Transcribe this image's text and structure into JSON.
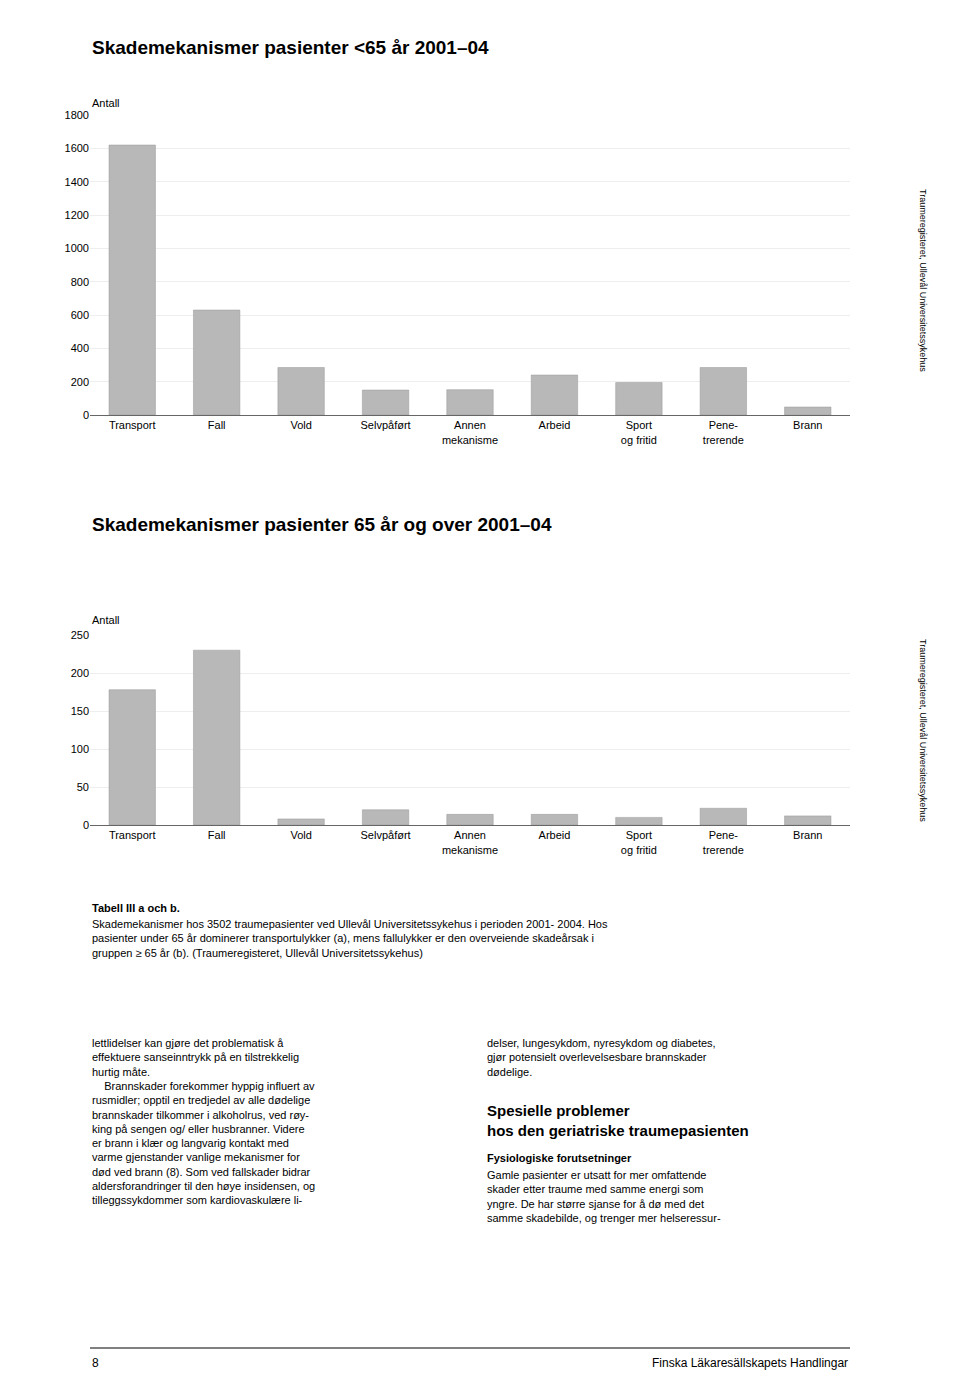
{
  "chart_data": [
    {
      "type": "bar",
      "title": "Skademekanismer pasienter <65 år 2001–04",
      "ylabel": "Antall",
      "categories": [
        "Transport",
        "Fall",
        "Vold",
        "Selvpåført",
        "Annen\nmekanisme",
        "Arbeid",
        "Sport\nog fritid",
        "Pene-\ntrerende",
        "Brann"
      ],
      "values": [
        1620,
        630,
        285,
        150,
        152,
        240,
        195,
        285,
        48
      ],
      "color": "#b8b8b8",
      "ylim": [
        0,
        1800
      ],
      "yticks": [
        0,
        200,
        400,
        600,
        800,
        1000,
        1200,
        1400,
        1600,
        1800
      ],
      "grid": true,
      "annotations": [
        "Traumeregisteret, Ullevål Universitetssykehus"
      ]
    },
    {
      "type": "bar",
      "title": "Skademekanismer pasienter 65 år og over 2001–04",
      "ylabel": "Antall",
      "categories": [
        "Transport",
        "Fall",
        "Vold",
        "Selvpåført",
        "Annen\nmekanisme",
        "Arbeid",
        "Sport\nog fritid",
        "Pene-\ntrerende",
        "Brann"
      ],
      "values": [
        178,
        230,
        8,
        20,
        14,
        14,
        10,
        22,
        12
      ],
      "color": "#b8b8b8",
      "ylim": [
        0,
        250
      ],
      "yticks": [
        0,
        50,
        100,
        150,
        200,
        250
      ],
      "grid": true,
      "annotations": [
        "Traumeregisteret, Ullevål Universitetssykehus"
      ]
    }
  ],
  "annotations": [
    "Tabell III a och b.",
    "Skademekanismer hos 3502 traumepasienter ved Ullevål Universitetssykehus i perioden 2001- 2004. Hos\npasienter under 65 år dominerer transportulykker (a), mens fallulykker er den overveiende skadeårsak i\ngruppen ≥ 65 år (b). (Traumeregisteret, Ullevål Universitetssykehus)",
    "lettlidelser kan gjøre det problematisk å\neffektuere sanseinntrykk på en tilstrekkelig\nhurtig måte.\n    Brannskader forekommer hyppig influert av\nrusmidler; opptil en tredjedel av alle dødelige\nbrannskader tilkommer i alkoholrus, ved røy-\nking på sengen og/ eller husbranner. Videre\ner brann i klær og langvarig kontakt med\nvarme gjenstander vanlige mekanismer for\ndød ved brann (8). Som ved fallskader bidrar\naldersforandringer til den høye insidensen, og\ntilleggssykdommer som kardiovaskulære li-",
    "delser, lungesykdom, nyresykdom og diabetes,\ngjør potensielt overlevelsesbare brannskader\ndødelige.",
    "Spesielle problemer\nhos den geriatriske traumepasienten",
    "Fysiologiske forutsetninger",
    "Gamle pasienter er utsatt for mer omfattende\nskader etter traume med samme energi som\nyngre. De har større sjanse for å dø med det\nsamme skadebilde, og trenger mer helseressur-",
    "8",
    "Finska Läkaresällskapets Handlingar"
  ]
}
